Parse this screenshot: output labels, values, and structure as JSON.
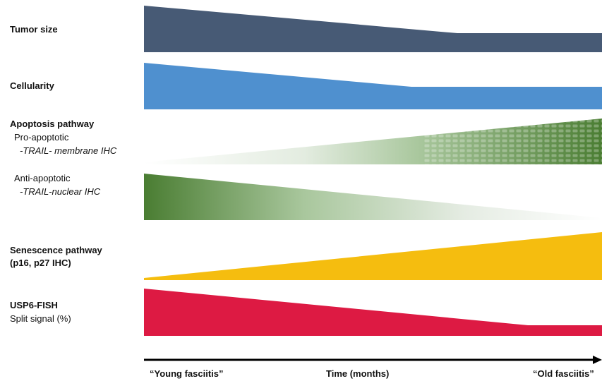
{
  "rows": {
    "tumor_size": {
      "label": "Tumor size",
      "color": "#475a75",
      "trend": "decreasing then plateau"
    },
    "cellularity": {
      "label": "Cellularity",
      "color": "#4f90cf",
      "trend": "decreasing then plateau"
    },
    "apoptosis": {
      "label": "Apoptosis pathway",
      "pro": {
        "label": "Pro-apoptotic",
        "marker": "-TRAIL- membrane IHC",
        "color": "#4a7d32",
        "trend": "increasing"
      },
      "anti": {
        "label": "Anti-apoptotic",
        "marker": "-TRAIL-nuclear IHC",
        "color": "#4a7d32",
        "trend": "decreasing"
      }
    },
    "senescence": {
      "label_line1": "Senescence pathway",
      "label_line2": "(p16, p27 IHC)",
      "color": "#f5bd0f",
      "trend": "increasing"
    },
    "usp6": {
      "label": "USP6-FISH",
      "sublabel": "Split signal (%)",
      "color": "#dd1a43",
      "trend": "decreasing then plateau"
    }
  },
  "axis": {
    "start_label": "“Young fasciitis”",
    "center_label": "Time (months)",
    "end_label": "“Old fasciitis”"
  }
}
